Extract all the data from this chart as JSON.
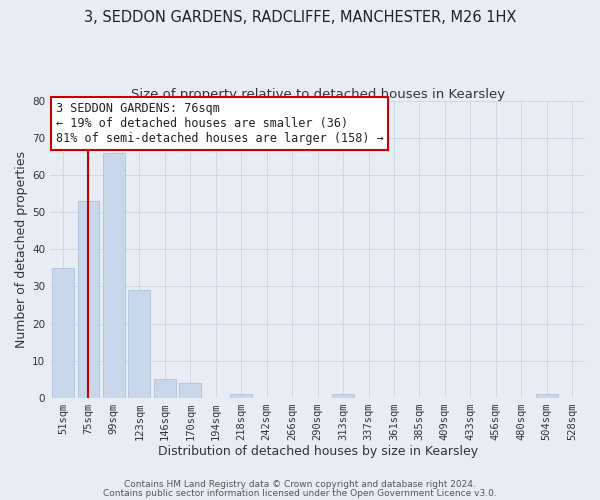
{
  "title": "3, SEDDON GARDENS, RADCLIFFE, MANCHESTER, M26 1HX",
  "subtitle": "Size of property relative to detached houses in Kearsley",
  "xlabel": "Distribution of detached houses by size in Kearsley",
  "ylabel": "Number of detached properties",
  "footer_line1": "Contains HM Land Registry data © Crown copyright and database right 2024.",
  "footer_line2": "Contains public sector information licensed under the Open Government Licence v3.0.",
  "bin_labels": [
    "51sqm",
    "75sqm",
    "99sqm",
    "123sqm",
    "146sqm",
    "170sqm",
    "194sqm",
    "218sqm",
    "242sqm",
    "266sqm",
    "290sqm",
    "313sqm",
    "337sqm",
    "361sqm",
    "385sqm",
    "409sqm",
    "433sqm",
    "456sqm",
    "480sqm",
    "504sqm",
    "528sqm"
  ],
  "bar_heights": [
    35,
    53,
    66,
    29,
    5,
    4,
    0,
    1,
    0,
    0,
    0,
    1,
    0,
    0,
    0,
    0,
    0,
    0,
    0,
    1,
    0
  ],
  "bar_color": "#c8d8ea",
  "bar_edge_color": "#b0c4d8",
  "vline_x": 1.0,
  "vline_color": "#cc0000",
  "annotation_text": "3 SEDDON GARDENS: 76sqm\n← 19% of detached houses are smaller (36)\n81% of semi-detached houses are larger (158) →",
  "annotation_box_color": "#ffffff",
  "annotation_box_edge": "#cc0000",
  "ylim": [
    0,
    80
  ],
  "yticks": [
    0,
    10,
    20,
    30,
    40,
    50,
    60,
    70,
    80
  ],
  "grid_color": "#cdd8e8",
  "background_color": "#e8edf4",
  "plot_background": "#e8edf4",
  "title_fontsize": 10.5,
  "subtitle_fontsize": 9.5,
  "axis_label_fontsize": 9,
  "tick_fontsize": 7.5,
  "annot_fontsize": 8.5
}
